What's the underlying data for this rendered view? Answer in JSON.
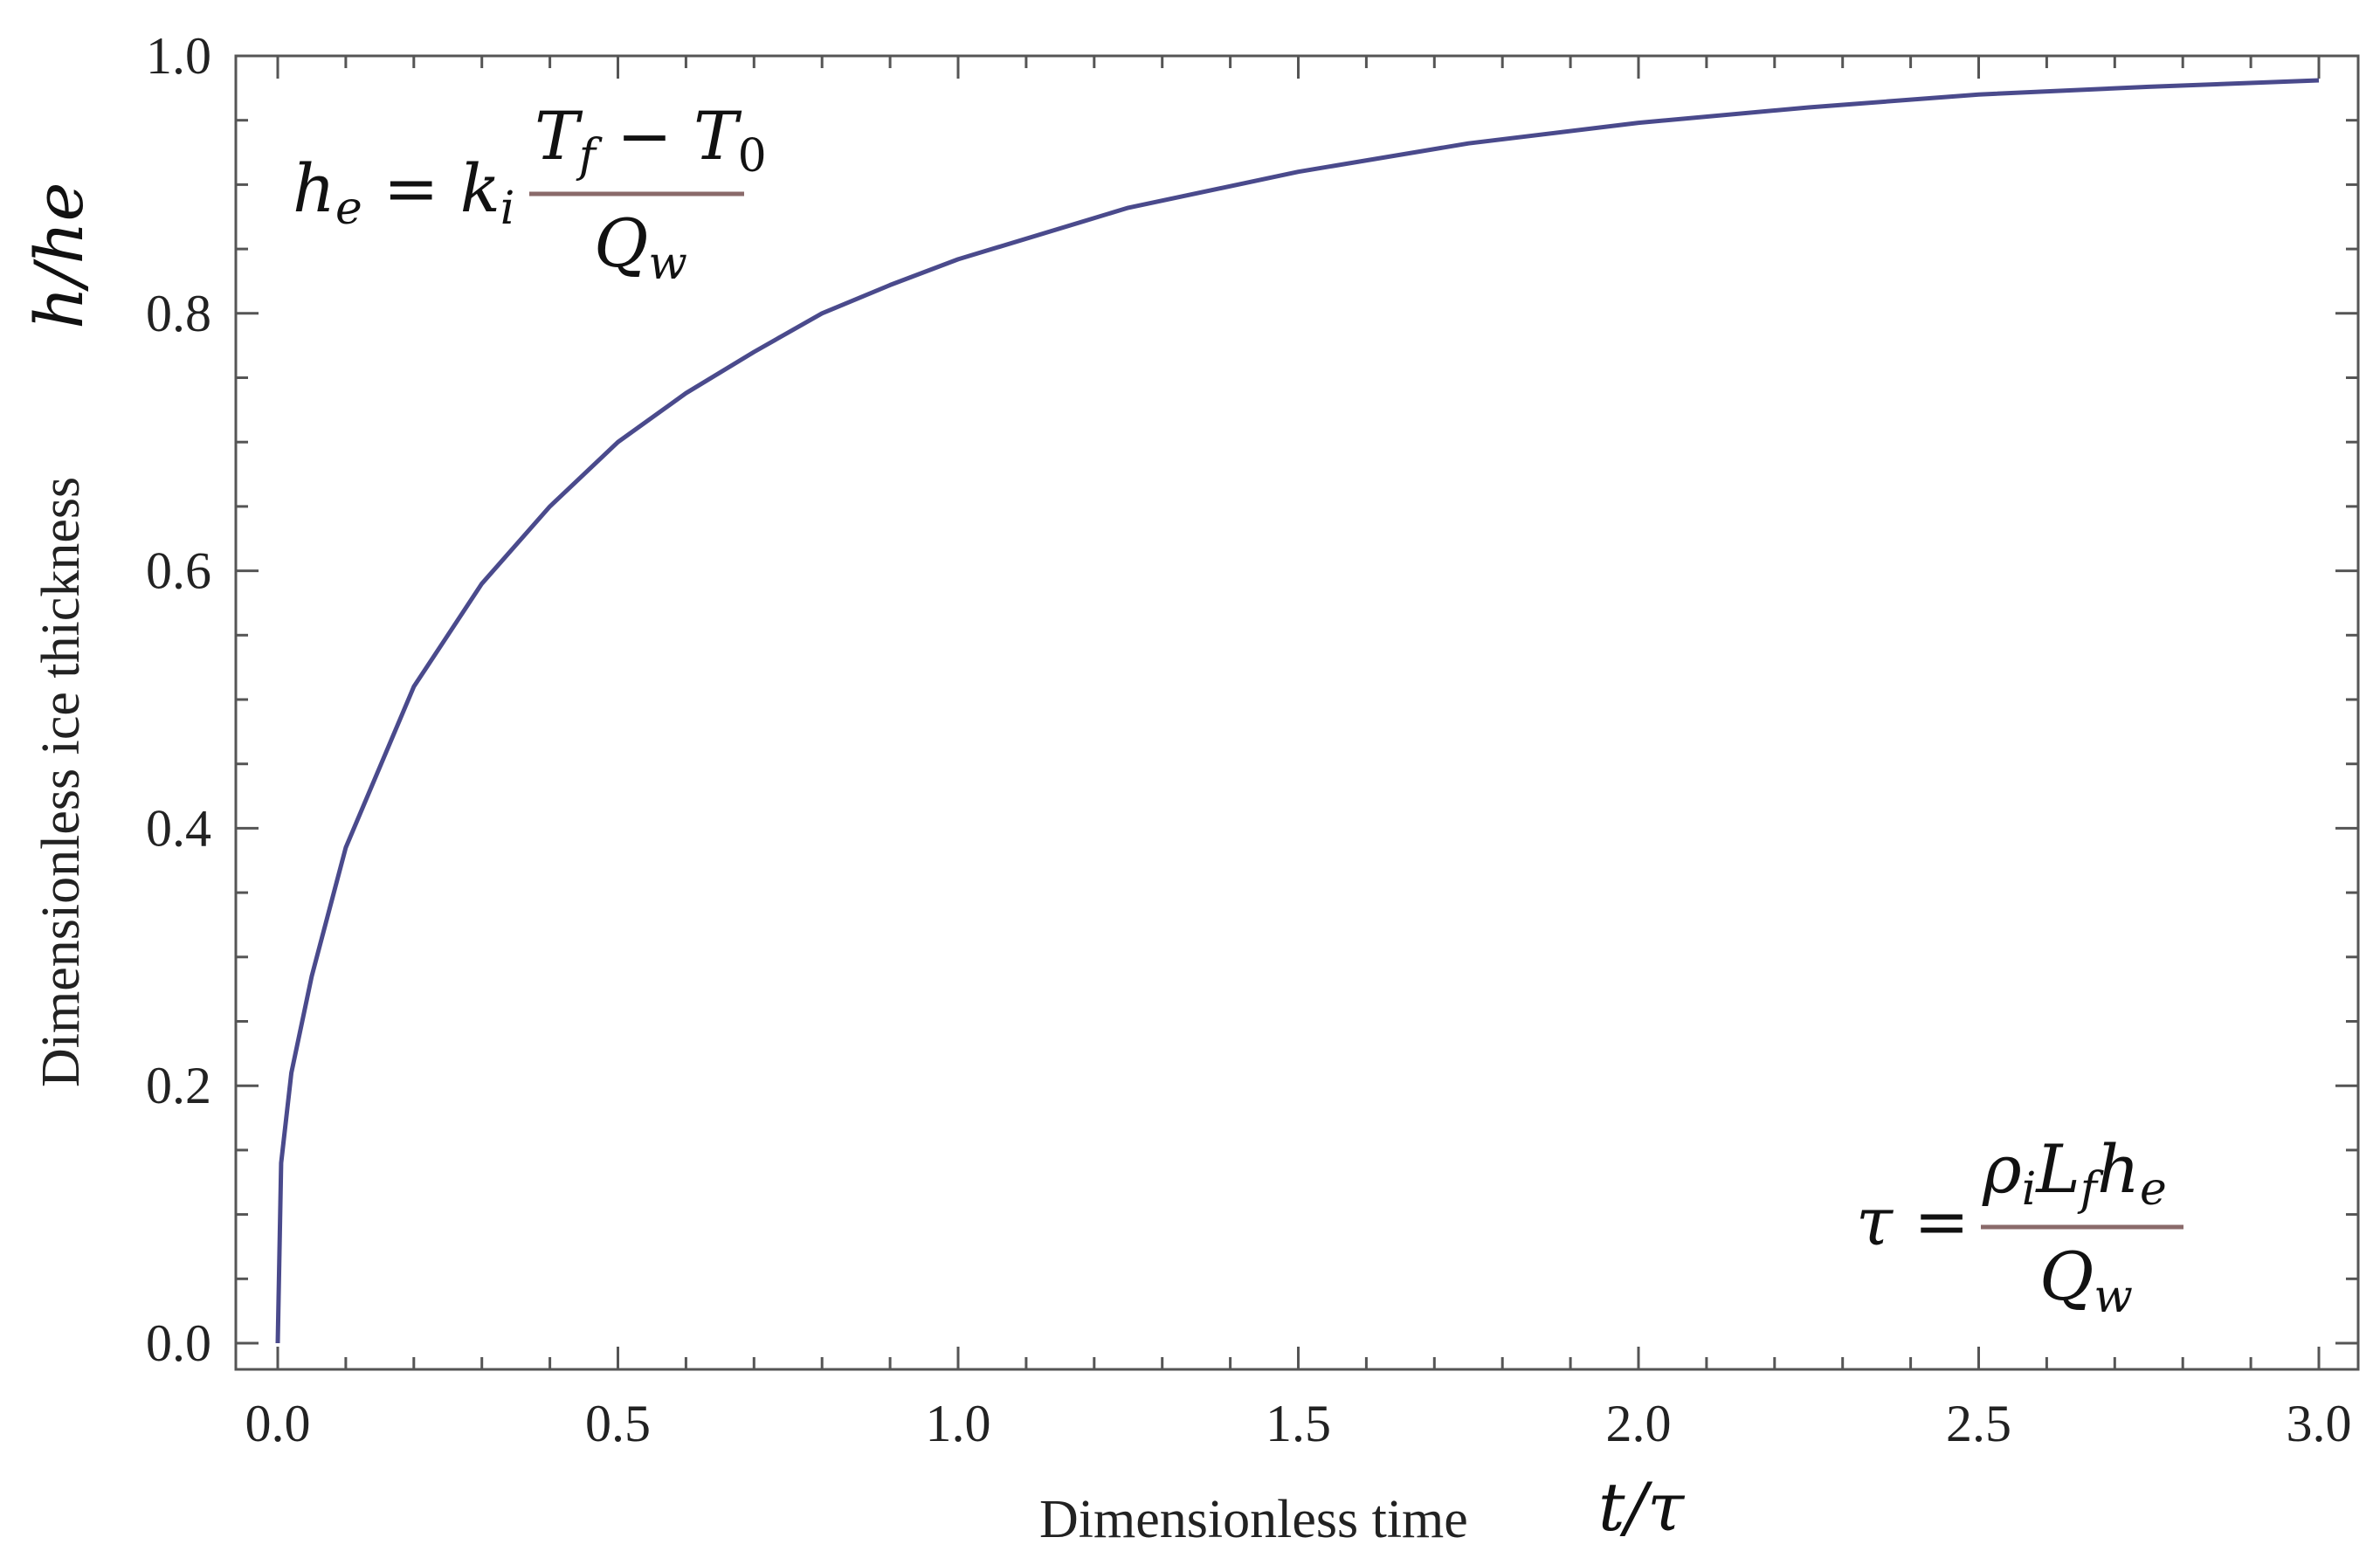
{
  "chart_data": {
    "type": "line",
    "title": "",
    "xlabel": "Dimensionless time",
    "xlabel_symbol": "t/τ",
    "ylabel": "Dimensionless ice thickness",
    "ylabel_symbol": "h/he",
    "xlim": [
      0,
      3.0
    ],
    "ylim": [
      0,
      1.0
    ],
    "x_ticks": [
      "0.0",
      "0.5",
      "1.0",
      "1.5",
      "2.0",
      "2.5",
      "3.0"
    ],
    "y_ticks": [
      "0.0",
      "0.2",
      "0.4",
      "0.6",
      "0.8",
      "1.0"
    ],
    "grid": false,
    "legend": "none",
    "series": [
      {
        "color": "#4a4a8c",
        "x": [
          0,
          0.005,
          0.02,
          0.05,
          0.1,
          0.2,
          0.3,
          0.4,
          0.5,
          0.6,
          0.7,
          0.8,
          0.9,
          1.0,
          1.25,
          1.5,
          1.75,
          2.0,
          2.25,
          2.5,
          2.75,
          3.0
        ],
        "y": [
          0,
          0.14,
          0.21,
          0.285,
          0.385,
          0.51,
          0.59,
          0.65,
          0.7,
          0.738,
          0.77,
          0.8,
          0.822,
          0.842,
          0.882,
          0.91,
          0.932,
          0.948,
          0.96,
          0.97,
          0.976,
          0.981
        ]
      }
    ],
    "annotations": {
      "he_formula": {
        "lhs": "h",
        "lhs_sub": "e",
        "eq": " = ",
        "coef": "k",
        "coef_sub": "i",
        "num_a": "T",
        "num_a_sub": "f",
        "num_op": " − ",
        "num_b": "T",
        "num_b_sub": "0",
        "den": "Q",
        "den_sub": "w"
      },
      "tau_formula": {
        "lhs": "τ",
        "eq": " = ",
        "num_1": "ρ",
        "num_1_sub": "i",
        "num_2": "L",
        "num_2_sub": "f",
        "num_3": "h",
        "num_3_sub": "e",
        "den": "Q",
        "den_sub": "w"
      }
    },
    "colors": {
      "line": "#4a4a8c",
      "fraction_bar": "#8a6a6a",
      "axes": "#555555"
    }
  }
}
